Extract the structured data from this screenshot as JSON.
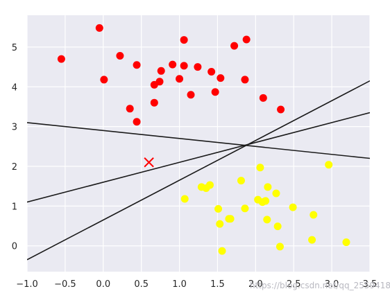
{
  "chart_data": {
    "type": "scatter",
    "title": "",
    "xlabel": "",
    "ylabel": "",
    "xlim": [
      -1.0,
      3.5
    ],
    "ylim": [
      -0.65,
      5.8
    ],
    "grid": true,
    "background": "#eaeaf2",
    "grid_color": "#ffffff",
    "x_ticks": [
      -1.0,
      -0.5,
      0.0,
      0.5,
      1.0,
      1.5,
      2.0,
      2.5,
      3.0,
      3.5
    ],
    "x_tick_labels": [
      "−1.0",
      "−0.5",
      "0.0",
      "0.5",
      "1.0",
      "1.5",
      "2.0",
      "2.5",
      "3.0",
      "3.5"
    ],
    "y_ticks": [
      0,
      1,
      2,
      3,
      4,
      5
    ],
    "y_tick_labels": [
      "0",
      "1",
      "2",
      "3",
      "4",
      "5"
    ],
    "series": [
      {
        "color": "#ff0000",
        "points": [
          [
            -0.55,
            4.7
          ],
          [
            -0.05,
            5.48
          ],
          [
            0.01,
            4.18
          ],
          [
            0.22,
            4.78
          ],
          [
            0.35,
            3.45
          ],
          [
            0.44,
            4.55
          ],
          [
            0.44,
            3.12
          ],
          [
            0.67,
            4.05
          ],
          [
            0.67,
            3.6
          ],
          [
            0.74,
            4.13
          ],
          [
            0.76,
            4.4
          ],
          [
            0.91,
            4.56
          ],
          [
            1.0,
            4.2
          ],
          [
            1.06,
            5.18
          ],
          [
            1.06,
            4.53
          ],
          [
            1.15,
            3.8
          ],
          [
            1.24,
            4.5
          ],
          [
            1.42,
            4.38
          ],
          [
            1.47,
            3.87
          ],
          [
            1.54,
            4.22
          ],
          [
            1.72,
            5.03
          ],
          [
            1.86,
            4.18
          ],
          [
            1.88,
            5.19
          ],
          [
            2.1,
            3.72
          ],
          [
            2.33,
            3.43
          ]
        ]
      },
      {
        "color": "#ffff00",
        "points": [
          [
            1.07,
            1.18
          ],
          [
            1.29,
            1.48
          ],
          [
            1.35,
            1.45
          ],
          [
            1.4,
            1.53
          ],
          [
            1.51,
            0.93
          ],
          [
            1.53,
            0.55
          ],
          [
            1.56,
            -0.13
          ],
          [
            1.65,
            0.68
          ],
          [
            1.67,
            0.68
          ],
          [
            1.81,
            1.64
          ],
          [
            1.86,
            0.94
          ],
          [
            2.03,
            1.16
          ],
          [
            2.06,
            1.97
          ],
          [
            2.09,
            1.1
          ],
          [
            2.13,
            1.13
          ],
          [
            2.15,
            0.66
          ],
          [
            2.16,
            1.48
          ],
          [
            2.27,
            1.32
          ],
          [
            2.29,
            0.49
          ],
          [
            2.32,
            -0.02
          ],
          [
            2.49,
            0.97
          ],
          [
            2.74,
            0.15
          ],
          [
            2.76,
            0.78
          ],
          [
            2.96,
            2.04
          ],
          [
            3.19,
            0.09
          ]
        ]
      }
    ],
    "marker": {
      "x": 0.6,
      "y": 2.1,
      "symbol": "x",
      "color": "#ff0000"
    },
    "lines": [
      {
        "slope": 1.0,
        "intercept": 0.65,
        "color": "#1a1a1a"
      },
      {
        "slope": 0.5,
        "intercept": 1.6,
        "color": "#1a1a1a"
      },
      {
        "slope": -0.2,
        "intercept": 2.9,
        "color": "#1a1a1a"
      }
    ]
  },
  "watermark": "https://blog.csdn.net/qq_25594187"
}
